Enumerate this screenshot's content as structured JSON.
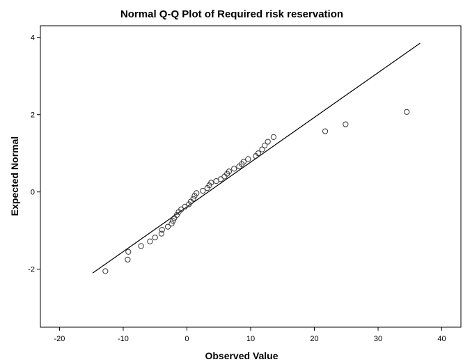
{
  "chart_data": {
    "type": "scatter",
    "title": "Normal Q-Q Plot of Required risk reservation",
    "xlabel": "Observed Value",
    "ylabel": "Expected Normal",
    "xlim": [
      -23,
      43
    ],
    "ylim": [
      -3.5,
      4.3
    ],
    "xticks": [
      -20,
      -10,
      0,
      10,
      20,
      30,
      40
    ],
    "yticks": [
      -2,
      0,
      2,
      4
    ],
    "grid": false,
    "legend": "none",
    "colors": {
      "points": "#333333",
      "line": "#000000",
      "frame": "#000000",
      "background": "#ffffff"
    },
    "reference_line": {
      "x": [
        -14.8,
        36.6
      ],
      "y": [
        -2.1,
        3.85
      ]
    },
    "points": [
      {
        "x": -12.8,
        "y": -2.05
      },
      {
        "x": -9.3,
        "y": -1.75
      },
      {
        "x": -9.2,
        "y": -1.55
      },
      {
        "x": -7.2,
        "y": -1.4
      },
      {
        "x": -5.8,
        "y": -1.28
      },
      {
        "x": -5.0,
        "y": -1.18
      },
      {
        "x": -4.0,
        "y": -1.08
      },
      {
        "x": -3.9,
        "y": -0.98
      },
      {
        "x": -3.0,
        "y": -0.9
      },
      {
        "x": -2.4,
        "y": -0.82
      },
      {
        "x": -2.2,
        "y": -0.75
      },
      {
        "x": -2.0,
        "y": -0.68
      },
      {
        "x": -1.6,
        "y": -0.6
      },
      {
        "x": -1.3,
        "y": -0.52
      },
      {
        "x": -0.9,
        "y": -0.45
      },
      {
        "x": -0.3,
        "y": -0.38
      },
      {
        "x": 0.3,
        "y": -0.32
      },
      {
        "x": 0.6,
        "y": -0.25
      },
      {
        "x": 1.0,
        "y": -0.18
      },
      {
        "x": 1.2,
        "y": -0.1
      },
      {
        "x": 1.5,
        "y": -0.03
      },
      {
        "x": 2.5,
        "y": 0.03
      },
      {
        "x": 3.2,
        "y": 0.1
      },
      {
        "x": 3.5,
        "y": 0.17
      },
      {
        "x": 3.8,
        "y": 0.24
      },
      {
        "x": 4.6,
        "y": 0.28
      },
      {
        "x": 5.3,
        "y": 0.33
      },
      {
        "x": 5.9,
        "y": 0.4
      },
      {
        "x": 6.3,
        "y": 0.47
      },
      {
        "x": 6.6,
        "y": 0.53
      },
      {
        "x": 7.4,
        "y": 0.6
      },
      {
        "x": 8.2,
        "y": 0.66
      },
      {
        "x": 8.6,
        "y": 0.72
      },
      {
        "x": 8.9,
        "y": 0.78
      },
      {
        "x": 9.6,
        "y": 0.85
      },
      {
        "x": 10.8,
        "y": 0.93
      },
      {
        "x": 11.2,
        "y": 1.0
      },
      {
        "x": 11.8,
        "y": 1.1
      },
      {
        "x": 12.2,
        "y": 1.2
      },
      {
        "x": 12.7,
        "y": 1.3
      },
      {
        "x": 13.6,
        "y": 1.42
      },
      {
        "x": 21.7,
        "y": 1.57
      },
      {
        "x": 24.9,
        "y": 1.75
      },
      {
        "x": 34.5,
        "y": 2.07
      }
    ]
  }
}
